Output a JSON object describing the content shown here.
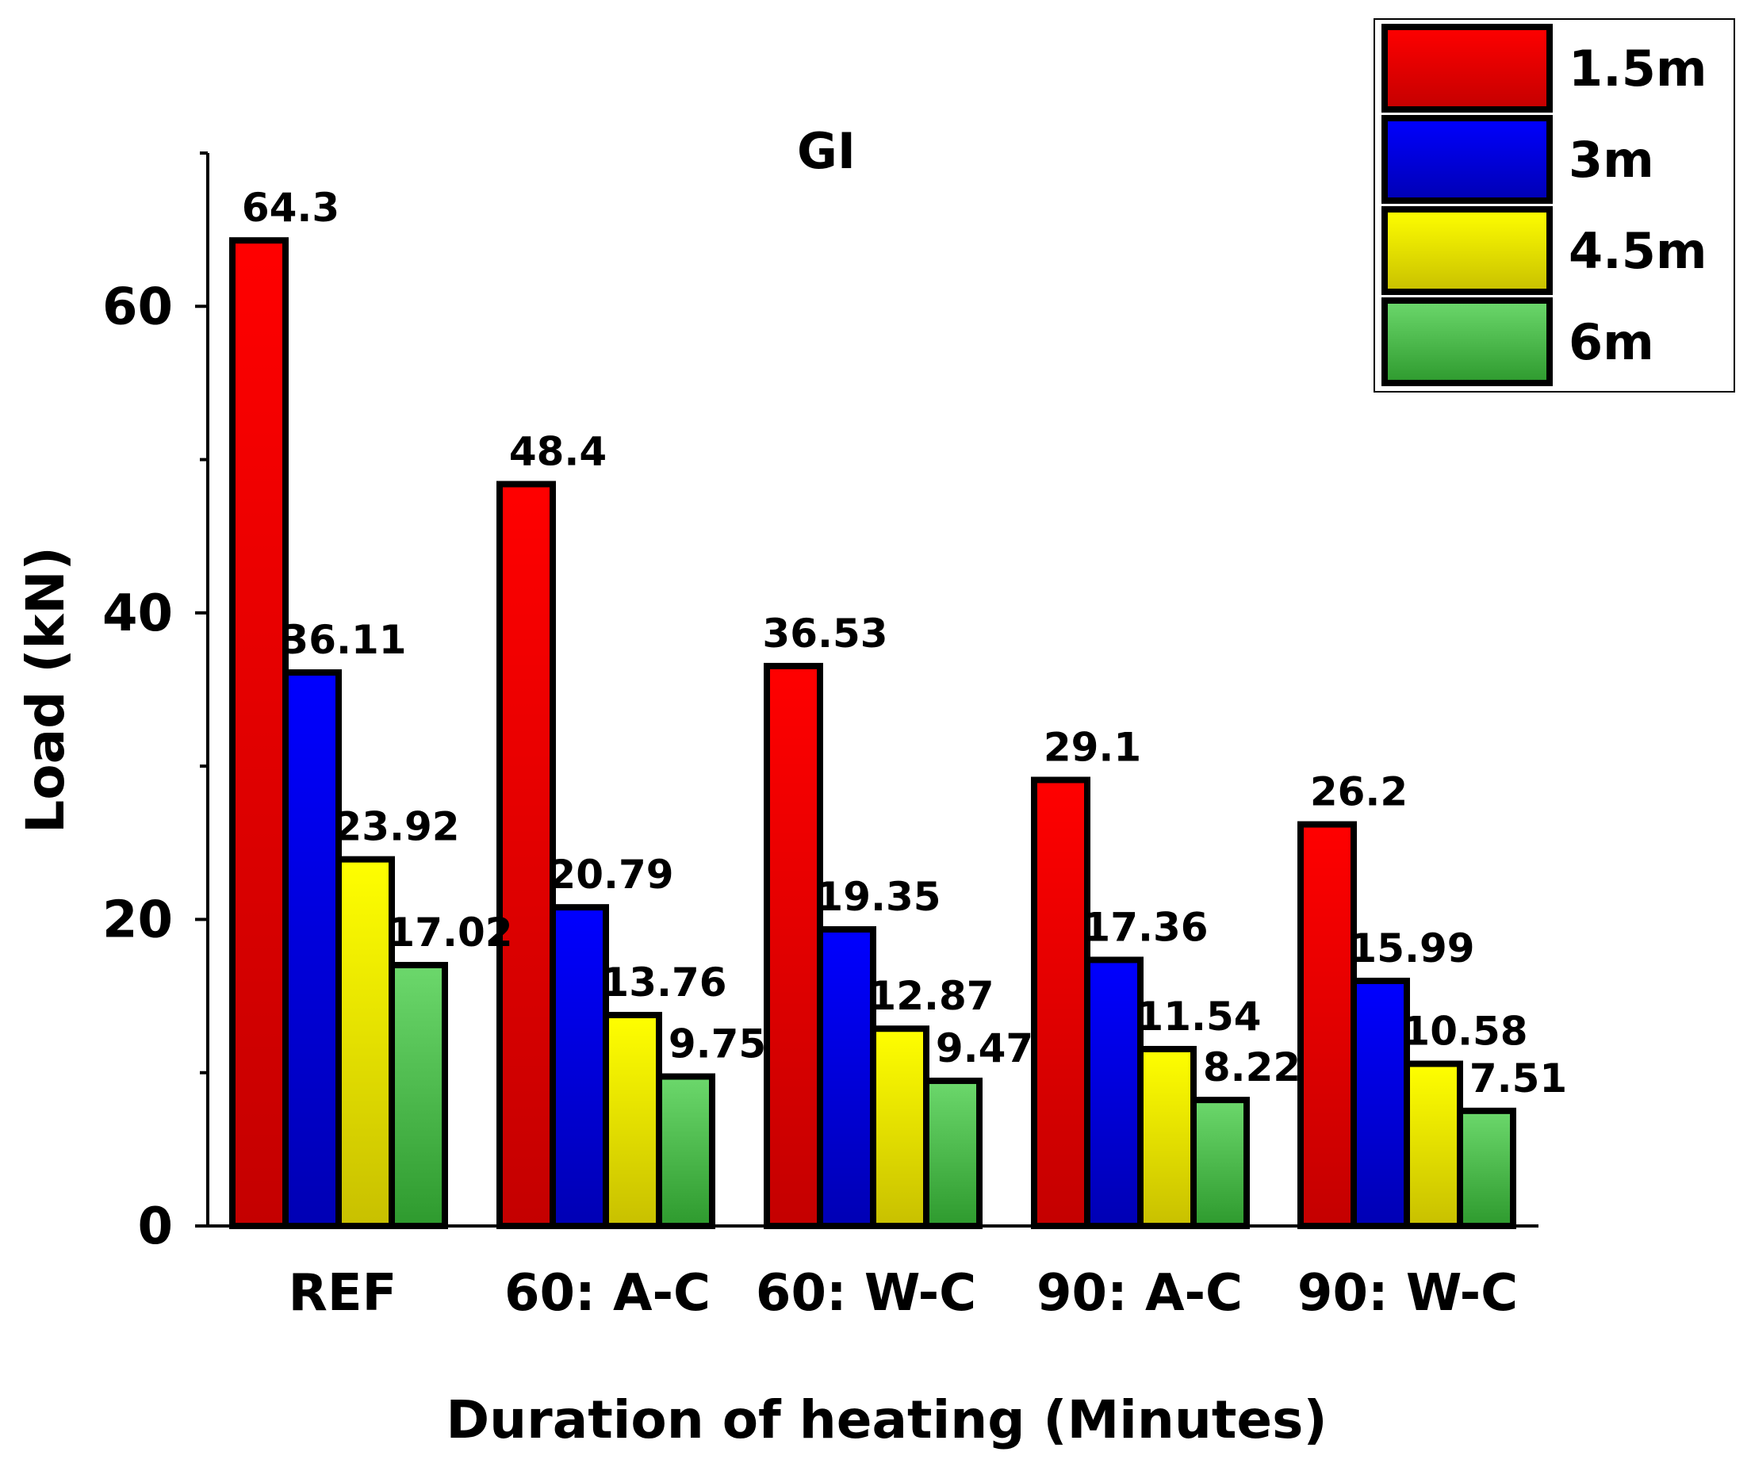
{
  "chart_data": {
    "type": "bar",
    "title": "GI",
    "xlabel": "Duration of heating (Minutes)",
    "ylabel": "Load (kN)",
    "ylim": [
      0,
      70
    ],
    "yticks": [
      0,
      20,
      40,
      60
    ],
    "categories": [
      "REF",
      "60: A-C",
      "60: W-C",
      "90: A-C",
      "90: W-C"
    ],
    "series": [
      {
        "name": "1.5m",
        "color_top": "#ff0000",
        "color_bottom": "#c40000",
        "values": [
          64.3,
          48.4,
          36.53,
          29.1,
          26.2
        ],
        "labels": [
          "64.3",
          "48.4",
          "36.53",
          "29.1",
          "26.2"
        ]
      },
      {
        "name": "3m",
        "color_top": "#0000ff",
        "color_bottom": "#0000b4",
        "values": [
          36.11,
          20.79,
          19.35,
          17.36,
          15.99
        ],
        "labels": [
          "36.11",
          "20.79",
          "19.35",
          "17.36",
          "15.99"
        ]
      },
      {
        "name": "4.5m",
        "color_top": "#ffff00",
        "color_bottom": "#c8c000",
        "values": [
          23.92,
          13.76,
          12.87,
          11.54,
          10.58
        ],
        "labels": [
          "23.92",
          "13.76",
          "12.87",
          "11.54",
          "10.58"
        ]
      },
      {
        "name": "6m",
        "color_top": "#6cd86c",
        "color_bottom": "#2e9a2e",
        "values": [
          17.02,
          9.75,
          9.47,
          8.22,
          7.51
        ],
        "labels": [
          "17.02",
          "9.75",
          "9.47",
          "8.22",
          "7.51"
        ]
      }
    ],
    "legend_position": "top-right",
    "grid": false
  }
}
